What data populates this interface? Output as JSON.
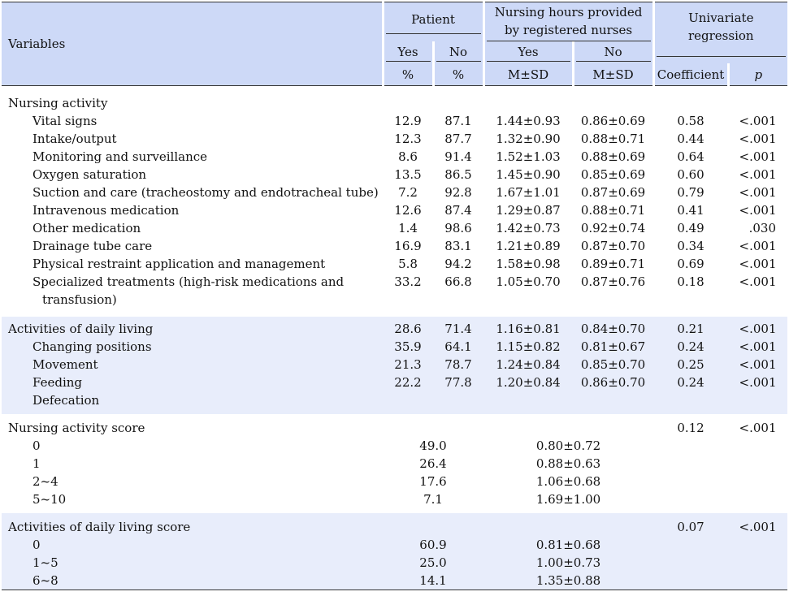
{
  "header": {
    "variables": "Variables",
    "patient": "Patient",
    "nursing_hours": "Nursing hours provided by registered nurses",
    "univariate": "Univariate regression",
    "yes": "Yes",
    "no": "No",
    "pct": "%",
    "msd": "M±SD",
    "coefficient": "Coefficient",
    "p": "p"
  },
  "sections": [
    {
      "title": "Nursing activity",
      "rows": [
        {
          "label": "Vital signs",
          "yes_pct": "12.9",
          "no_pct": "87.1",
          "yes_msd": "1.44±0.93",
          "no_msd": "0.86±0.69",
          "coef": "0.58",
          "p": "<.001"
        },
        {
          "label": "Intake/output",
          "yes_pct": "12.3",
          "no_pct": "87.7",
          "yes_msd": "1.32±0.90",
          "no_msd": "0.88±0.71",
          "coef": "0.44",
          "p": "<.001"
        },
        {
          "label": "Monitoring and surveillance",
          "yes_pct": "8.6",
          "no_pct": "91.4",
          "yes_msd": "1.52±1.03",
          "no_msd": "0.88±0.69",
          "coef": "0.64",
          "p": "<.001"
        },
        {
          "label": "Oxygen saturation",
          "yes_pct": "13.5",
          "no_pct": "86.5",
          "yes_msd": "1.45±0.90",
          "no_msd": "0.85±0.69",
          "coef": "0.60",
          "p": "<.001"
        },
        {
          "label": "Suction and care (tracheostomy and endotracheal tube)",
          "yes_pct": "7.2",
          "no_pct": "92.8",
          "yes_msd": "1.67±1.01",
          "no_msd": "0.87±0.69",
          "coef": "0.79",
          "p": "<.001"
        },
        {
          "label": "Intravenous medication",
          "yes_pct": "12.6",
          "no_pct": "87.4",
          "yes_msd": "1.29±0.87",
          "no_msd": "0.88±0.71",
          "coef": "0.41",
          "p": "<.001"
        },
        {
          "label": "Other medication",
          "yes_pct": "1.4",
          "no_pct": "98.6",
          "yes_msd": "1.42±0.73",
          "no_msd": "0.92±0.74",
          "coef": "0.49",
          "p": ".030"
        },
        {
          "label": "Drainage tube care",
          "yes_pct": "16.9",
          "no_pct": "83.1",
          "yes_msd": "1.21±0.89",
          "no_msd": "0.87±0.70",
          "coef": "0.34",
          "p": "<.001"
        },
        {
          "label": "Physical restraint application and management",
          "yes_pct": "5.8",
          "no_pct": "94.2",
          "yes_msd": "1.58±0.98",
          "no_msd": "0.89±0.71",
          "coef": "0.69",
          "p": "<.001"
        },
        {
          "label_line1": "Specialized treatments (high-risk medications and",
          "label_line2": "transfusion)",
          "yes_pct": "33.2",
          "no_pct": "66.8",
          "yes_msd": "1.05±0.70",
          "no_msd": "0.87±0.76",
          "coef": "0.18",
          "p": "<.001"
        }
      ]
    },
    {
      "title": "Activities of daily living",
      "title_values": {
        "yes_pct": "28.6",
        "no_pct": "71.4",
        "yes_msd": "1.16±0.81",
        "no_msd": "0.84±0.70",
        "coef": "0.21",
        "p": "<.001"
      },
      "rows": [
        {
          "label": "Changing positions",
          "yes_pct": "35.9",
          "no_pct": "64.1",
          "yes_msd": "1.15±0.82",
          "no_msd": "0.81±0.67",
          "coef": "0.24",
          "p": "<.001"
        },
        {
          "label": "Movement",
          "yes_pct": "21.3",
          "no_pct": "78.7",
          "yes_msd": "1.24±0.84",
          "no_msd": "0.85±0.70",
          "coef": "0.25",
          "p": "<.001"
        },
        {
          "label": "Feeding",
          "yes_pct": "22.2",
          "no_pct": "77.8",
          "yes_msd": "1.20±0.84",
          "no_msd": "0.86±0.70",
          "coef": "0.24",
          "p": "<.001"
        },
        {
          "label": "Defecation"
        }
      ]
    },
    {
      "title": "Nursing activity score",
      "title_values": {
        "coef": "0.12",
        "p": "<.001"
      },
      "rows": [
        {
          "label": "0",
          "pct": "49.0",
          "msd": "0.80±0.72"
        },
        {
          "label": "1",
          "pct": "26.4",
          "msd": "0.88±0.63"
        },
        {
          "label": "2~4",
          "pct": "17.6",
          "msd": "1.06±0.68"
        },
        {
          "label": "5~10",
          "pct": "7.1",
          "msd": "1.69±1.00"
        }
      ]
    },
    {
      "title": "Activities of daily living score",
      "title_values": {
        "coef": "0.07",
        "p": "<.001"
      },
      "rows": [
        {
          "label": "0",
          "pct": "60.9",
          "msd": "0.81±0.68"
        },
        {
          "label": "1~5",
          "pct": "25.0",
          "msd": "1.00±0.73"
        },
        {
          "label": "6~8",
          "pct": "14.1",
          "msd": "1.35±0.88"
        }
      ]
    }
  ]
}
